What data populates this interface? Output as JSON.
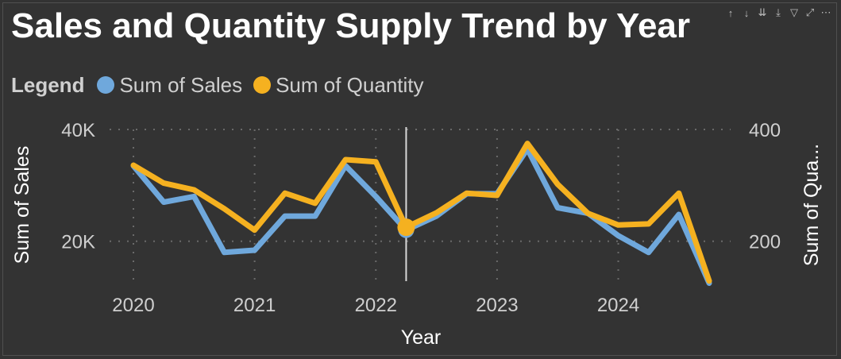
{
  "header": {
    "title": "Sales and Quantity Supply Trend by Year",
    "icons": [
      "drill-up-icon",
      "drill-down-icon",
      "expand-next-level-icon",
      "expand-all-icon",
      "filter-icon",
      "focus-mode-icon",
      "more-options-icon"
    ]
  },
  "legend": {
    "title": "Legend",
    "items": [
      {
        "name": "Sum of Sales",
        "color": "#6fa8dc"
      },
      {
        "name": "Sum of Quantity",
        "color": "#f5b120"
      }
    ]
  },
  "chart_data": {
    "type": "line",
    "xlabel": "Year",
    "ylabel_left": "Sum of Sales",
    "ylabel_right": "Sum of Qua...",
    "x": [
      2020.0,
      2020.25,
      2020.5,
      2020.75,
      2021.0,
      2021.25,
      2021.5,
      2021.75,
      2022.0,
      2022.25,
      2022.5,
      2022.75,
      2023.0,
      2023.25,
      2023.5,
      2023.75,
      2024.0,
      2024.25,
      2024.5,
      2024.75
    ],
    "x_ticks": [
      "2020",
      "2021",
      "2022",
      "2023",
      "2024"
    ],
    "y_left_ticks": [
      "20K",
      "40K"
    ],
    "y_right_ticks": [
      "200",
      "400"
    ],
    "ylim_left": [
      13000,
      40000
    ],
    "ylim_right": [
      130,
      400
    ],
    "grid": "dotted",
    "legend_position": "top-left",
    "series": [
      {
        "name": "Sum of Sales",
        "axis": "left",
        "color": "#6fa8dc",
        "values": [
          33500,
          27000,
          28000,
          18000,
          18400,
          24500,
          24500,
          33500,
          28000,
          22000,
          24500,
          28500,
          28500,
          36500,
          26000,
          25000,
          21000,
          18000,
          24800,
          12500
        ]
      },
      {
        "name": "Sum of Quantity",
        "axis": "right",
        "color": "#f5b120",
        "values": [
          336,
          304,
          292,
          258,
          220,
          286,
          268,
          346,
          342,
          225,
          251,
          286,
          282,
          375,
          302,
          250,
          229,
          231,
          286,
          129
        ]
      }
    ],
    "highlight": {
      "x": 2022.25
    }
  }
}
